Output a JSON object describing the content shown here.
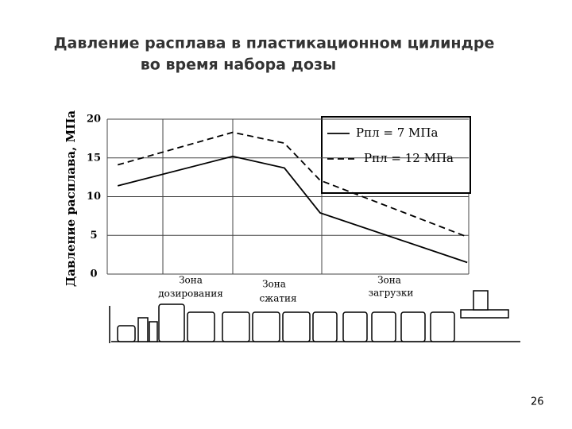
{
  "chart_data": {
    "type": "line",
    "title": [
      "Давление расплава в пластикационном цилиндре",
      "во время набора дозы"
    ],
    "y_label": "Давление расплава, МПа",
    "xlim": [
      0,
      100
    ],
    "ylim": [
      0,
      20
    ],
    "yticks": [
      0,
      5,
      10,
      15,
      20
    ],
    "grid": true,
    "x": [
      2.9,
      34.7,
      49,
      58.9,
      99.6
    ],
    "series": [
      {
        "name": "Рпл = 7 МПа",
        "color": "#000000",
        "line_style": "solid",
        "values": [
          11.4,
          15.2,
          13.7,
          7.9,
          1.5
        ]
      },
      {
        "name": "Рпл = 12 МПа",
        "color": "#000000",
        "line_style": "dashed",
        "values": [
          14.1,
          18.3,
          16.9,
          12.1,
          4.8
        ]
      }
    ],
    "annotations": [
      [
        "Зона",
        "дозирования"
      ],
      [
        "Зона",
        "сжатия"
      ],
      [
        "Зона",
        "загрузки"
      ]
    ]
  },
  "page_number": "26"
}
